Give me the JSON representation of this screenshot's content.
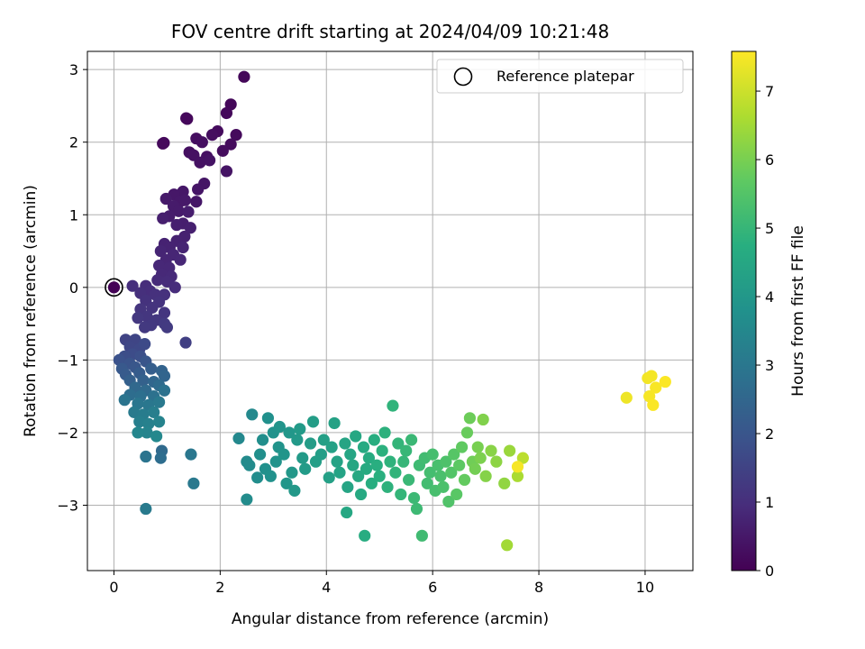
{
  "chart_data": {
    "type": "scatter",
    "title": "FOV centre drift starting at 2024/04/09 10:21:48",
    "xlabel": "Angular distance from reference (arcmin)",
    "ylabel": "Rotation from reference (arcmin)",
    "colorbar_label": "Hours from first FF file",
    "colormap": "viridis",
    "xlim": [
      -0.5,
      10.9
    ],
    "ylim": [
      -3.9,
      3.25
    ],
    "clim": [
      0,
      7.58
    ],
    "xticks": [
      0,
      2,
      4,
      6,
      8,
      10
    ],
    "yticks": [
      -3,
      -2,
      -1,
      0,
      1,
      2,
      3
    ],
    "cticks": [
      0,
      1,
      2,
      3,
      4,
      5,
      6,
      7
    ],
    "grid": true,
    "legend": {
      "position": "top-right",
      "label": "Reference platepar"
    },
    "reference_point": {
      "x": 0,
      "y": 0
    },
    "points": [
      [
        0.0,
        0.0,
        0.05
      ],
      [
        2.45,
        2.9,
        0.12
      ],
      [
        2.2,
        2.52,
        0.13
      ],
      [
        2.12,
        2.4,
        0.14
      ],
      [
        1.38,
        2.32,
        0.15
      ],
      [
        1.36,
        2.33,
        0.16
      ],
      [
        0.92,
        1.98,
        0.17
      ],
      [
        0.94,
        1.99,
        0.18
      ],
      [
        2.3,
        2.1,
        0.2
      ],
      [
        1.95,
        2.15,
        0.22
      ],
      [
        2.2,
        1.97,
        0.23
      ],
      [
        2.05,
        1.88,
        0.25
      ],
      [
        1.85,
        2.1,
        0.27
      ],
      [
        1.55,
        2.05,
        0.28
      ],
      [
        1.42,
        1.86,
        0.3
      ],
      [
        1.66,
        2.0,
        0.31
      ],
      [
        1.75,
        1.8,
        0.33
      ],
      [
        1.5,
        1.82,
        0.35
      ],
      [
        1.62,
        1.72,
        0.36
      ],
      [
        1.8,
        1.75,
        0.38
      ],
      [
        2.12,
        1.6,
        0.4
      ],
      [
        1.7,
        1.43,
        0.42
      ],
      [
        1.58,
        1.35,
        0.43
      ],
      [
        1.55,
        1.18,
        0.45
      ],
      [
        1.3,
        1.32,
        0.47
      ],
      [
        1.13,
        1.28,
        0.48
      ],
      [
        1.24,
        1.18,
        0.5
      ],
      [
        1.34,
        1.2,
        0.52
      ],
      [
        0.98,
        1.22,
        0.53
      ],
      [
        1.12,
        1.12,
        0.55
      ],
      [
        1.22,
        1.05,
        0.57
      ],
      [
        1.04,
        0.98,
        0.58
      ],
      [
        1.4,
        1.04,
        0.6
      ],
      [
        1.3,
        0.88,
        0.62
      ],
      [
        0.92,
        0.95,
        0.64
      ],
      [
        1.18,
        0.86,
        0.65
      ],
      [
        1.44,
        0.82,
        0.66
      ],
      [
        1.33,
        0.7,
        0.68
      ],
      [
        1.18,
        0.64,
        0.7
      ],
      [
        0.95,
        0.6,
        0.72
      ],
      [
        1.05,
        0.55,
        0.74
      ],
      [
        1.3,
        0.55,
        0.75
      ],
      [
        0.88,
        0.5,
        0.77
      ],
      [
        1.12,
        0.45,
        0.79
      ],
      [
        0.98,
        0.38,
        0.8
      ],
      [
        1.25,
        0.38,
        0.82
      ],
      [
        0.85,
        0.3,
        0.84
      ],
      [
        1.04,
        0.27,
        0.85
      ],
      [
        0.9,
        0.18,
        0.87
      ],
      [
        1.08,
        0.15,
        0.89
      ],
      [
        0.82,
        0.1,
        0.9
      ],
      [
        1.0,
        0.08,
        0.92
      ],
      [
        1.15,
        0.0,
        0.94
      ],
      [
        0.6,
        0.02,
        0.96
      ],
      [
        0.68,
        -0.05,
        0.98
      ],
      [
        0.35,
        0.02,
        1.0
      ],
      [
        0.5,
        -0.08,
        1.02
      ],
      [
        0.78,
        -0.1,
        1.04
      ],
      [
        0.95,
        -0.1,
        1.06
      ],
      [
        0.6,
        -0.18,
        1.08
      ],
      [
        0.85,
        -0.2,
        1.1
      ],
      [
        0.72,
        -0.28,
        1.12
      ],
      [
        0.5,
        -0.3,
        1.14
      ],
      [
        0.95,
        -0.35,
        1.16
      ],
      [
        0.62,
        -0.4,
        1.18
      ],
      [
        0.8,
        -0.45,
        1.2
      ],
      [
        0.45,
        -0.42,
        1.22
      ],
      [
        0.7,
        -0.52,
        1.24
      ],
      [
        0.58,
        -0.55,
        1.26
      ],
      [
        0.95,
        -0.5,
        1.28
      ],
      [
        1.0,
        -0.55,
        1.3
      ],
      [
        1.35,
        -0.76,
        1.4
      ],
      [
        0.22,
        -0.72,
        1.5
      ],
      [
        0.4,
        -0.72,
        1.55
      ],
      [
        0.3,
        -0.82,
        1.6
      ],
      [
        0.48,
        -0.85,
        1.65
      ],
      [
        0.58,
        -0.78,
        1.7
      ],
      [
        0.35,
        -0.92,
        1.75
      ],
      [
        0.2,
        -0.95,
        1.8
      ],
      [
        0.5,
        -0.95,
        1.85
      ],
      [
        0.1,
        -1.0,
        1.9
      ],
      [
        0.3,
        -1.05,
        1.95
      ],
      [
        0.6,
        -1.02,
        2.0
      ],
      [
        0.4,
        -1.1,
        2.05
      ],
      [
        0.15,
        -1.12,
        2.1
      ],
      [
        0.22,
        -1.2,
        2.15
      ],
      [
        0.48,
        -1.18,
        2.2
      ],
      [
        0.7,
        -1.12,
        2.25
      ],
      [
        0.3,
        -1.28,
        2.3
      ],
      [
        0.55,
        -1.28,
        2.35
      ],
      [
        0.9,
        -1.15,
        2.4
      ],
      [
        0.95,
        -1.22,
        2.45
      ],
      [
        0.75,
        -1.3,
        2.5
      ],
      [
        0.4,
        -1.38,
        2.55
      ],
      [
        0.6,
        -1.42,
        2.6
      ],
      [
        0.85,
        -1.35,
        2.65
      ],
      [
        0.3,
        -1.48,
        2.7
      ],
      [
        0.5,
        -1.5,
        2.75
      ],
      [
        0.75,
        -1.5,
        2.8
      ],
      [
        0.95,
        -1.42,
        2.85
      ],
      [
        0.2,
        -1.55,
        2.9
      ],
      [
        0.45,
        -1.6,
        2.95
      ],
      [
        0.65,
        -1.62,
        3.0
      ],
      [
        0.85,
        -1.58,
        3.05
      ],
      [
        0.38,
        -1.72,
        3.1
      ],
      [
        0.55,
        -1.75,
        3.15
      ],
      [
        0.75,
        -1.72,
        3.2
      ],
      [
        0.48,
        -1.85,
        3.25
      ],
      [
        0.65,
        -1.88,
        3.3
      ],
      [
        0.85,
        -1.85,
        3.35
      ],
      [
        0.62,
        -2.0,
        3.4
      ],
      [
        0.45,
        -2.0,
        3.45
      ],
      [
        0.8,
        -2.05,
        3.5
      ],
      [
        0.9,
        -2.25,
        2.6
      ],
      [
        0.88,
        -2.35,
        2.7
      ],
      [
        0.6,
        -2.33,
        2.9
      ],
      [
        1.45,
        -2.3,
        3.0
      ],
      [
        1.5,
        -2.7,
        3.05
      ],
      [
        0.6,
        -3.05,
        3.1
      ],
      [
        2.35,
        -2.08,
        3.5
      ],
      [
        2.6,
        -1.75,
        3.55
      ],
      [
        2.5,
        -2.4,
        3.6
      ],
      [
        2.55,
        -2.45,
        3.62
      ],
      [
        2.5,
        -2.92,
        3.65
      ],
      [
        2.7,
        -2.62,
        3.68
      ],
      [
        2.8,
        -2.1,
        3.7
      ],
      [
        2.75,
        -2.3,
        3.72
      ],
      [
        2.85,
        -2.5,
        3.75
      ],
      [
        2.9,
        -1.8,
        3.77
      ],
      [
        2.95,
        -2.6,
        3.8
      ],
      [
        3.0,
        -2.0,
        3.82
      ],
      [
        3.05,
        -2.4,
        3.85
      ],
      [
        3.1,
        -2.2,
        3.87
      ],
      [
        3.12,
        -1.92,
        3.9
      ],
      [
        3.2,
        -2.3,
        3.92
      ],
      [
        3.25,
        -2.7,
        3.95
      ],
      [
        3.3,
        -2.0,
        3.97
      ],
      [
        3.35,
        -2.55,
        4.0
      ],
      [
        3.4,
        -2.8,
        4.02
      ],
      [
        3.45,
        -2.1,
        4.05
      ],
      [
        3.5,
        -1.95,
        4.07
      ],
      [
        3.55,
        -2.35,
        4.1
      ],
      [
        3.6,
        -2.5,
        4.12
      ],
      [
        3.7,
        -2.15,
        4.15
      ],
      [
        3.75,
        -1.85,
        4.17
      ],
      [
        3.8,
        -2.4,
        4.2
      ],
      [
        3.9,
        -2.3,
        4.22
      ],
      [
        3.95,
        -2.1,
        4.25
      ],
      [
        4.05,
        -2.62,
        4.27
      ],
      [
        4.1,
        -2.2,
        4.3
      ],
      [
        4.15,
        -1.87,
        4.32
      ],
      [
        4.2,
        -2.4,
        4.35
      ],
      [
        4.25,
        -2.55,
        4.37
      ],
      [
        4.35,
        -2.15,
        4.4
      ],
      [
        4.4,
        -2.75,
        4.42
      ],
      [
        4.45,
        -2.3,
        4.45
      ],
      [
        4.5,
        -2.45,
        4.47
      ],
      [
        4.55,
        -2.05,
        4.5
      ],
      [
        4.38,
        -3.1,
        4.52
      ],
      [
        4.6,
        -2.6,
        4.55
      ],
      [
        4.65,
        -2.85,
        4.57
      ],
      [
        4.7,
        -2.2,
        4.6
      ],
      [
        4.75,
        -2.5,
        4.62
      ],
      [
        4.8,
        -2.35,
        4.65
      ],
      [
        4.72,
        -3.42,
        4.67
      ],
      [
        4.85,
        -2.7,
        4.7
      ],
      [
        4.9,
        -2.1,
        4.72
      ],
      [
        4.95,
        -2.45,
        4.75
      ],
      [
        5.0,
        -2.6,
        4.77
      ],
      [
        5.05,
        -2.25,
        4.8
      ],
      [
        5.1,
        -2.0,
        4.82
      ],
      [
        5.15,
        -2.75,
        4.85
      ],
      [
        5.2,
        -2.4,
        4.87
      ],
      [
        5.25,
        -1.63,
        4.9
      ],
      [
        5.3,
        -2.55,
        4.92
      ],
      [
        5.35,
        -2.15,
        4.95
      ],
      [
        5.4,
        -2.85,
        4.97
      ],
      [
        5.45,
        -2.4,
        5.0
      ],
      [
        5.5,
        -2.25,
        5.02
      ],
      [
        5.55,
        -2.65,
        5.05
      ],
      [
        5.6,
        -2.1,
        5.07
      ],
      [
        5.65,
        -2.9,
        5.1
      ],
      [
        5.7,
        -3.05,
        5.12
      ],
      [
        5.75,
        -2.45,
        5.15
      ],
      [
        5.8,
        -3.42,
        5.17
      ],
      [
        5.85,
        -2.35,
        5.2
      ],
      [
        5.9,
        -2.7,
        5.22
      ],
      [
        5.95,
        -2.55,
        5.25
      ],
      [
        6.0,
        -2.3,
        5.27
      ],
      [
        6.05,
        -2.8,
        5.3
      ],
      [
        6.1,
        -2.45,
        5.32
      ],
      [
        6.15,
        -2.6,
        5.35
      ],
      [
        6.2,
        -2.75,
        5.37
      ],
      [
        6.25,
        -2.4,
        5.4
      ],
      [
        6.3,
        -2.95,
        5.45
      ],
      [
        6.35,
        -2.55,
        5.5
      ],
      [
        6.4,
        -2.3,
        5.55
      ],
      [
        6.45,
        -2.85,
        5.6
      ],
      [
        6.5,
        -2.45,
        5.65
      ],
      [
        6.55,
        -2.2,
        5.7
      ],
      [
        6.6,
        -2.65,
        5.75
      ],
      [
        6.65,
        -2.0,
        5.8
      ],
      [
        6.7,
        -1.8,
        5.85
      ],
      [
        6.75,
        -2.4,
        5.9
      ],
      [
        6.8,
        -2.5,
        5.95
      ],
      [
        6.85,
        -2.2,
        6.0
      ],
      [
        6.9,
        -2.35,
        6.05
      ],
      [
        6.95,
        -1.82,
        6.1
      ],
      [
        7.0,
        -2.6,
        6.15
      ],
      [
        7.1,
        -2.25,
        6.2
      ],
      [
        7.2,
        -2.4,
        6.25
      ],
      [
        7.35,
        -2.7,
        6.3
      ],
      [
        7.45,
        -2.25,
        6.4
      ],
      [
        7.6,
        -2.6,
        6.6
      ],
      [
        7.7,
        -2.35,
        6.8
      ],
      [
        7.4,
        -3.55,
        6.5
      ],
      [
        7.6,
        -2.47,
        7.5
      ],
      [
        9.65,
        -1.52,
        7.4
      ],
      [
        10.05,
        -1.25,
        7.45
      ],
      [
        10.12,
        -1.22,
        7.47
      ],
      [
        10.08,
        -1.5,
        7.5
      ],
      [
        10.2,
        -1.38,
        7.52
      ],
      [
        10.15,
        -1.62,
        7.54
      ],
      [
        10.38,
        -1.3,
        7.56
      ]
    ]
  }
}
